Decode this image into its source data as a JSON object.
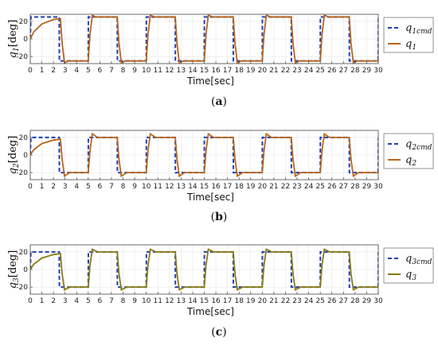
{
  "chart_data": [
    {
      "type": "line",
      "panel_label": "a",
      "ylabel": "q1[deg]",
      "xlabel": "Time[sec]",
      "xlim": [
        0,
        30
      ],
      "ylim": [
        -28,
        28
      ],
      "xticks": [
        0,
        1,
        2,
        3,
        4,
        5,
        6,
        7,
        8,
        9,
        10,
        11,
        12,
        13,
        14,
        15,
        16,
        17,
        18,
        19,
        20,
        21,
        22,
        23,
        24,
        25,
        26,
        27,
        28,
        29,
        30
      ],
      "yticks": [
        -20,
        0,
        20
      ],
      "grid": true,
      "legend_position": "right",
      "series": [
        {
          "name": "q1cmd",
          "style": "dashed",
          "color": "#1f3fb4",
          "x": [
            0,
            0.05,
            2.5,
            2.51,
            5,
            5.01,
            7.5,
            7.51,
            10,
            10.01,
            12.5,
            12.51,
            15,
            15.01,
            17.5,
            17.51,
            20,
            20.01,
            22.5,
            22.51,
            25,
            25.01,
            27.5,
            27.51,
            30,
            30.01
          ],
          "y": [
            0,
            25,
            25,
            -25,
            -25,
            25,
            25,
            -25,
            -25,
            25,
            25,
            -25,
            -25,
            25,
            25,
            -25,
            -25,
            25,
            25,
            -25,
            -25,
            25,
            25,
            -25,
            -25,
            25
          ]
        },
        {
          "name": "q1",
          "style": "solid",
          "color": "#b8651b",
          "x": [
            0,
            0.3,
            1,
            2,
            2.6,
            2.75,
            2.95,
            3.3,
            5,
            5.15,
            5.35,
            5.6,
            6,
            7.5,
            7.65,
            7.85,
            8.2,
            10,
            10.15,
            10.35,
            10.7,
            12.5,
            12.65,
            12.85,
            13.2,
            15,
            15.15,
            15.35,
            15.7,
            17.5,
            17.65,
            17.85,
            18.2,
            20,
            20.15,
            20.35,
            20.7,
            22.5,
            22.65,
            22.85,
            23.2,
            25,
            25.15,
            25.35,
            25.7,
            27.5,
            27.65,
            27.85,
            28.2,
            30
          ],
          "y": [
            0,
            8,
            17,
            22,
            23,
            -5,
            -27,
            -25,
            -25,
            5,
            27,
            25,
            25,
            25,
            -5,
            -27,
            -25,
            -25,
            5,
            27,
            25,
            25,
            -5,
            -27,
            -25,
            -25,
            5,
            27,
            25,
            25,
            -5,
            -27,
            -25,
            -25,
            5,
            27,
            25,
            25,
            -5,
            -27,
            -25,
            -25,
            5,
            27,
            25,
            25,
            -5,
            -27,
            -25,
            -25
          ]
        }
      ]
    },
    {
      "type": "line",
      "panel_label": "b",
      "ylabel": "q2[deg]",
      "xlabel": "Time[sec]",
      "xlim": [
        0,
        30
      ],
      "ylim": [
        -28,
        28
      ],
      "xticks": [
        0,
        1,
        2,
        3,
        4,
        5,
        6,
        7,
        8,
        9,
        10,
        11,
        12,
        13,
        14,
        15,
        16,
        17,
        18,
        19,
        20,
        21,
        22,
        23,
        24,
        25,
        26,
        27,
        28,
        29,
        30
      ],
      "yticks": [
        -20,
        0,
        20
      ],
      "grid": true,
      "legend_position": "right",
      "series": [
        {
          "name": "q2cmd",
          "style": "dashed",
          "color": "#1f3fb4",
          "x": [
            0,
            0.05,
            2.5,
            2.51,
            5,
            5.01,
            7.5,
            7.51,
            10,
            10.01,
            12.5,
            12.51,
            15,
            15.01,
            17.5,
            17.51,
            20,
            20.01,
            22.5,
            22.51,
            25,
            25.01,
            27.5,
            27.51,
            30,
            30.01
          ],
          "y": [
            0,
            20,
            20,
            -20,
            -20,
            20,
            20,
            -20,
            -20,
            20,
            20,
            -20,
            -20,
            20,
            20,
            -20,
            -20,
            20,
            20,
            -20,
            -20,
            20,
            20,
            -20,
            -20,
            20
          ]
        },
        {
          "name": "q2",
          "style": "solid",
          "color": "#b8651b",
          "x": [
            0,
            0.3,
            1,
            2,
            2.6,
            2.75,
            2.95,
            3.4,
            5,
            5.15,
            5.35,
            5.8,
            7.5,
            7.65,
            7.85,
            8.3,
            10,
            10.15,
            10.35,
            10.8,
            12.5,
            12.65,
            12.85,
            13.3,
            15,
            15.15,
            15.35,
            15.8,
            17.5,
            17.65,
            17.85,
            18.3,
            20,
            20.15,
            20.35,
            20.8,
            22.5,
            22.65,
            22.85,
            23.3,
            25,
            25.15,
            25.35,
            25.8,
            27.5,
            27.65,
            27.85,
            28.3,
            30
          ],
          "y": [
            0,
            6,
            13,
            17,
            18,
            -5,
            -24,
            -20,
            -20,
            5,
            24,
            20,
            20,
            -5,
            -24,
            -20,
            -20,
            5,
            24,
            20,
            20,
            -5,
            -24,
            -20,
            -20,
            5,
            24,
            20,
            20,
            -5,
            -24,
            -20,
            -20,
            5,
            24,
            20,
            20,
            -5,
            -24,
            -20,
            -20,
            5,
            24,
            20,
            20,
            -5,
            -24,
            -20,
            -20
          ]
        }
      ]
    },
    {
      "type": "line",
      "panel_label": "c",
      "ylabel": "q3[deg]",
      "xlabel": "Time[sec]",
      "xlim": [
        0,
        30
      ],
      "ylim": [
        -28,
        28
      ],
      "xticks": [
        0,
        1,
        2,
        3,
        4,
        5,
        6,
        7,
        8,
        9,
        10,
        11,
        12,
        13,
        14,
        15,
        16,
        17,
        18,
        19,
        20,
        21,
        22,
        23,
        24,
        25,
        26,
        27,
        28,
        29,
        30
      ],
      "yticks": [
        -20,
        0,
        20
      ],
      "grid": true,
      "legend_position": "right",
      "series": [
        {
          "name": "q3cmd",
          "style": "dashed",
          "color": "#1f3fb4",
          "x": [
            0,
            0.05,
            2.5,
            2.51,
            5,
            5.01,
            7.5,
            7.51,
            10,
            10.01,
            12.5,
            12.51,
            15,
            15.01,
            17.5,
            17.51,
            20,
            20.01,
            22.5,
            22.51,
            25,
            25.01,
            27.5,
            27.51,
            30,
            30.01
          ],
          "y": [
            0,
            20,
            20,
            -20,
            -20,
            20,
            20,
            -20,
            -20,
            20,
            20,
            -20,
            -20,
            20,
            20,
            -20,
            -20,
            20,
            20,
            -20,
            -20,
            20,
            20,
            -20,
            -20,
            20
          ]
        },
        {
          "name": "q3",
          "style": "solid",
          "color": "#8a7a12",
          "x": [
            0,
            0.3,
            1,
            2,
            2.6,
            2.75,
            2.95,
            3.4,
            5,
            5.15,
            5.35,
            5.8,
            7.5,
            7.65,
            7.85,
            8.3,
            10,
            10.15,
            10.35,
            10.8,
            12.5,
            12.65,
            12.85,
            13.3,
            15,
            15.15,
            15.35,
            15.8,
            17.5,
            17.65,
            17.85,
            18.3,
            20,
            20.15,
            20.35,
            20.8,
            22.5,
            22.65,
            22.85,
            23.3,
            25,
            25.15,
            25.35,
            25.8,
            27.5,
            27.65,
            27.85,
            28.3,
            30
          ],
          "y": [
            0,
            6,
            13,
            17,
            18,
            -5,
            -23,
            -20,
            -20,
            5,
            23,
            20,
            20,
            -5,
            -23,
            -20,
            -20,
            5,
            23,
            20,
            20,
            -5,
            -23,
            -20,
            -20,
            5,
            23,
            20,
            20,
            -5,
            -23,
            -20,
            -20,
            5,
            23,
            20,
            20,
            -5,
            -23,
            -20,
            -20,
            5,
            23,
            20,
            20,
            -5,
            -23,
            -20,
            -20
          ]
        }
      ]
    }
  ],
  "captions": [
    "(a)",
    "(b)",
    "(c)"
  ]
}
